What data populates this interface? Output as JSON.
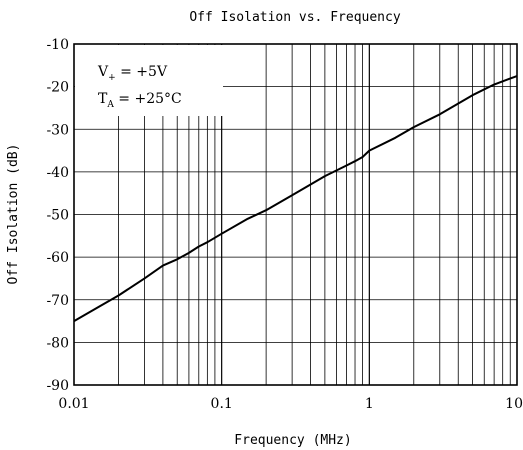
{
  "chart_data": {
    "type": "line",
    "title": "Off Isolation vs. Frequency",
    "xlabel": "Frequency (MHz)",
    "ylabel": "Off Isolation (dB)",
    "x_scale": "log",
    "xlim": [
      0.01,
      10
    ],
    "ylim": [
      -90,
      -10
    ],
    "x_ticks": [
      0.01,
      0.1,
      1,
      10
    ],
    "x_tick_labels": [
      "0.01",
      "0.1",
      "1",
      "10"
    ],
    "y_ticks": [
      -10,
      -20,
      -30,
      -40,
      -50,
      -60,
      -70,
      -80,
      -90
    ],
    "y_tick_labels": [
      "-10",
      "-20",
      "-30",
      "-40",
      "-50",
      "-60",
      "-70",
      "-80",
      "-90"
    ],
    "grid": true,
    "annotations": [
      {
        "base": "V",
        "sub": "+",
        "rest": " = +5V"
      },
      {
        "base": "T",
        "sub": "A",
        "rest": " = +25°C"
      }
    ],
    "series": [
      {
        "x": [
          0.01,
          0.015,
          0.02,
          0.03,
          0.04,
          0.05,
          0.06,
          0.07,
          0.08,
          0.1,
          0.15,
          0.2,
          0.3,
          0.5,
          0.7,
          0.8,
          0.9,
          1,
          1.5,
          2,
          3,
          5,
          7,
          10
        ],
        "y": [
          -75,
          -71.5,
          -69,
          -65,
          -62,
          -60.5,
          -59,
          -57.5,
          -56.5,
          -54.5,
          -51,
          -49,
          -45.5,
          -41,
          -38.5,
          -37.5,
          -36.5,
          -35,
          -32,
          -29.5,
          -26.5,
          -22,
          -19.5,
          -17.5
        ]
      }
    ]
  }
}
